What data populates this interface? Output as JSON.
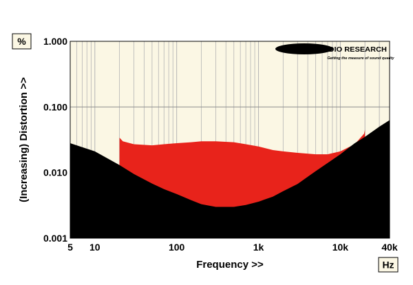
{
  "chart_data": {
    "type": "area",
    "title": "",
    "xlabel": "Frequency >>",
    "ylabel": "(Increasing) Distortion >>",
    "x_unit": "Hz",
    "y_unit": "%",
    "x_scale": "log",
    "y_scale": "log",
    "xlim": [
      5,
      40000
    ],
    "ylim": [
      0.001,
      1.0
    ],
    "grid": true,
    "legend": "none",
    "x_ticks": [
      {
        "value": 5,
        "label": "5"
      },
      {
        "value": 10,
        "label": "10"
      },
      {
        "value": 100,
        "label": "100"
      },
      {
        "value": 1000,
        "label": "1k"
      },
      {
        "value": 10000,
        "label": "10k"
      },
      {
        "value": 40000,
        "label": "40k"
      }
    ],
    "y_ticks": [
      {
        "value": 1.0,
        "label": "1.000"
      },
      {
        "value": 0.1,
        "label": "0.100"
      },
      {
        "value": 0.01,
        "label": "0.010"
      },
      {
        "value": 0.001,
        "label": "0.001"
      }
    ],
    "colors": {
      "plot_background": "#fbf7e4",
      "lower_area": "#000000",
      "upper_area": "#e8231b",
      "grid": "#b4b4b4"
    },
    "series": [
      {
        "role": "lower",
        "x": [
          5,
          10,
          20,
          30,
          50,
          70,
          100,
          150,
          200,
          300,
          500,
          700,
          1000,
          1500,
          2000,
          3000,
          5000,
          7000,
          10000,
          15000,
          20000,
          30000,
          40000
        ],
        "y": [
          0.028,
          0.021,
          0.013,
          0.0095,
          0.0068,
          0.0056,
          0.0047,
          0.0038,
          0.0033,
          0.003,
          0.003,
          0.0032,
          0.0036,
          0.0043,
          0.0052,
          0.0067,
          0.0105,
          0.014,
          0.019,
          0.028,
          0.035,
          0.05,
          0.063
        ]
      },
      {
        "role": "upper",
        "x": [
          20,
          22,
          30,
          50,
          70,
          100,
          150,
          200,
          300,
          500,
          700,
          1000,
          1500,
          2000,
          3000,
          5000,
          7000,
          10000,
          15000,
          19500,
          20000
        ],
        "y": [
          0.034,
          0.03,
          0.027,
          0.026,
          0.027,
          0.028,
          0.029,
          0.03,
          0.03,
          0.029,
          0.027,
          0.025,
          0.022,
          0.021,
          0.02,
          0.019,
          0.019,
          0.021,
          0.027,
          0.039,
          0.045
        ]
      }
    ]
  },
  "logo": {
    "name": "MILLER AUDIO RESEARCH",
    "tagline": "Getting the measure of sound quality"
  }
}
